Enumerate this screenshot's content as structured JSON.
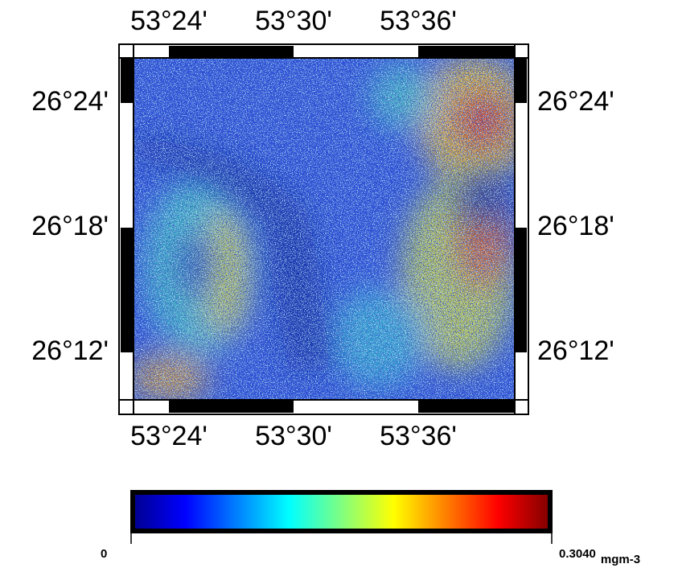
{
  "map": {
    "longitude_labels": [
      "53°24'",
      "53°30'",
      "53°36'"
    ],
    "latitude_labels": [
      "26°24'",
      "26°18'",
      "26°12'"
    ]
  },
  "colorbar": {
    "ticks": [
      0,
      {
        "value": 0.304,
        "label": "0.3040"
      }
    ],
    "unit": "mgm-3",
    "colors": [
      "#00008f",
      "#0000ff",
      "#0080ff",
      "#00ffff",
      "#80ff80",
      "#ffff00",
      "#ff8000",
      "#ff0000",
      "#800000"
    ]
  }
}
